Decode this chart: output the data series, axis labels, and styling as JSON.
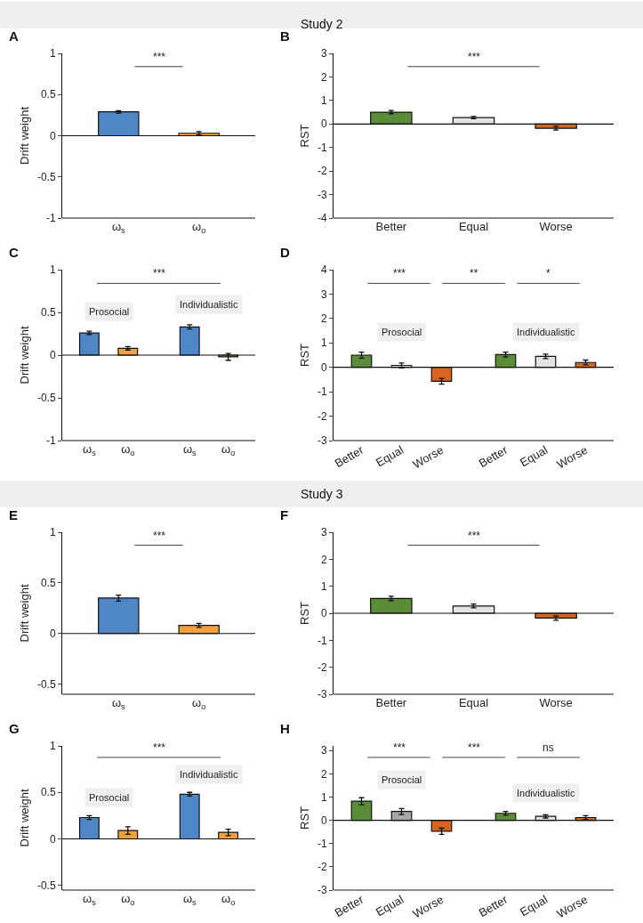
{
  "chart_data": [
    {
      "type": "other",
      "title": "Study 2"
    },
    {
      "type": "bar",
      "title": "A",
      "ylabel": "Drift weight",
      "categories": [
        "ω$_{s}$",
        "ω$_{o}$"
      ],
      "series": [
        {
          "values": [
            0.29,
            0.03
          ],
          "colors": [
            "#4f86c6",
            "#f5a03c"
          ],
          "errors": [
            0.015,
            0.02
          ]
        }
      ],
      "ylim": [
        -1,
        1
      ],
      "yticks": [
        -1,
        -0.5,
        0,
        0.5,
        1
      ],
      "annotations": [
        "***"
      ],
      "ref_lines": [
        {
          "axis": "y",
          "value": 0
        }
      ]
    },
    {
      "type": "bar",
      "title": "B",
      "ylabel": "RST",
      "categories": [
        "Better",
        "Equal",
        "Worse"
      ],
      "series": [
        {
          "values": [
            0.5,
            0.27,
            -0.18
          ],
          "colors": [
            "#5b8c3a",
            "#e3e3e3",
            "#d5651f"
          ],
          "errors": [
            0.07,
            0.05,
            0.08
          ]
        }
      ],
      "ylim": [
        -4,
        3
      ],
      "yticks": [
        -4,
        -3,
        -2,
        -1,
        0,
        1,
        2,
        3
      ],
      "annotations": [
        "***"
      ],
      "ref_lines": [
        {
          "axis": "y",
          "value": 0
        }
      ]
    },
    {
      "type": "bar",
      "title": "C",
      "ylabel": "Drift weight",
      "categories": [
        "ω$_{s}$",
        "ω$_{o}$",
        "ω$_{s}$",
        "ω$_{o}$"
      ],
      "series": [
        {
          "name": "Prosocial",
          "values": [
            0.26,
            0.08,
            null,
            null
          ],
          "colors": [
            "#4f86c6",
            "#f5a03c",
            null,
            null
          ],
          "errors": [
            0.02,
            0.02,
            null,
            null
          ]
        },
        {
          "name": "Individualistic",
          "values": [
            null,
            null,
            0.33,
            -0.02
          ],
          "colors": [
            null,
            null,
            "#4f86c6",
            "#f5a03c"
          ],
          "errors": [
            null,
            null,
            0.025,
            0.04
          ]
        }
      ],
      "ylim": [
        -1,
        1
      ],
      "yticks": [
        -1,
        -0.5,
        0,
        0.5,
        1
      ],
      "annotations": [
        "***"
      ],
      "ref_lines": [
        {
          "axis": "y",
          "value": 0
        }
      ]
    },
    {
      "type": "bar",
      "title": "D",
      "ylabel": "RST",
      "categories": [
        "Better",
        "Equal",
        "Worse",
        "Better",
        "Equal",
        "Worse"
      ],
      "series": [
        {
          "name": "Prosocial",
          "values": [
            0.5,
            0.08,
            -0.57,
            null,
            null,
            null
          ],
          "colors": [
            "#5b8c3a",
            "#e3e3e3",
            "#d5651f",
            null,
            null,
            null
          ],
          "errors": [
            0.12,
            0.1,
            0.12,
            null,
            null,
            null
          ]
        },
        {
          "name": "Individualistic",
          "values": [
            null,
            null,
            null,
            0.52,
            0.45,
            0.2
          ],
          "colors": [
            null,
            null,
            null,
            "#5b8c3a",
            "#e3e3e3",
            "#d5651f"
          ],
          "errors": [
            null,
            null,
            null,
            0.1,
            0.09,
            0.1
          ]
        }
      ],
      "ylim": [
        -3,
        4
      ],
      "yticks": [
        -3,
        -2,
        -1,
        0,
        1,
        2,
        3,
        4
      ],
      "annotations": [
        "***",
        "**",
        "*"
      ],
      "ref_lines": [
        {
          "axis": "y",
          "value": 0
        }
      ]
    },
    {
      "type": "other",
      "title": "Study 3"
    },
    {
      "type": "bar",
      "title": "E",
      "ylabel": "Drift weight",
      "categories": [
        "ω$_{s}$",
        "ω$_{o}$"
      ],
      "series": [
        {
          "values": [
            0.35,
            0.08
          ],
          "colors": [
            "#4f86c6",
            "#f5a03c"
          ],
          "errors": [
            0.03,
            0.02
          ]
        }
      ],
      "ylim": [
        -0.6,
        1
      ],
      "yticks": [
        -0.5,
        0,
        0.5,
        1
      ],
      "annotations": [
        "***"
      ],
      "ref_lines": [
        {
          "axis": "y",
          "value": 0
        }
      ]
    },
    {
      "type": "bar",
      "title": "F",
      "ylabel": "RST",
      "categories": [
        "Better",
        "Equal",
        "Worse"
      ],
      "series": [
        {
          "values": [
            0.55,
            0.27,
            -0.18
          ],
          "colors": [
            "#5b8c3a",
            "#e3e3e3",
            "#d5651f"
          ],
          "errors": [
            0.08,
            0.07,
            0.08
          ]
        }
      ],
      "ylim": [
        -3,
        3
      ],
      "yticks": [
        -3,
        -2,
        -1,
        0,
        1,
        2,
        3
      ],
      "annotations": [
        "***"
      ],
      "ref_lines": [
        {
          "axis": "y",
          "value": 0
        }
      ]
    },
    {
      "type": "bar",
      "title": "G",
      "ylabel": "Drift weight",
      "categories": [
        "ω$_{s}$",
        "ω$_{o}$",
        "ω$_{s}$",
        "ω$_{o}$"
      ],
      "series": [
        {
          "name": "Prosocial",
          "values": [
            0.23,
            0.09,
            null,
            null
          ],
          "colors": [
            "#4f86c6",
            "#f5a03c",
            null,
            null
          ],
          "errors": [
            0.02,
            0.04,
            null,
            null
          ]
        },
        {
          "name": "Individualistic",
          "values": [
            null,
            null,
            0.48,
            0.07
          ],
          "colors": [
            null,
            null,
            "#4f86c6",
            "#f5a03c"
          ],
          "errors": [
            null,
            null,
            0.02,
            0.035
          ]
        }
      ],
      "ylim": [
        -0.55,
        1
      ],
      "yticks": [
        -0.5,
        0,
        0.5,
        1
      ],
      "annotations": [
        "***"
      ],
      "ref_lines": [
        {
          "axis": "y",
          "value": 0
        }
      ]
    },
    {
      "type": "bar",
      "title": "H",
      "ylabel": "RST",
      "categories": [
        "Better",
        "Equal",
        "Worse",
        "Better",
        "Equal",
        "Worse"
      ],
      "series": [
        {
          "name": "Prosocial",
          "values": [
            0.82,
            0.38,
            -0.47,
            null,
            null,
            null
          ],
          "colors": [
            "#5b8c3a",
            "#a8a8a8",
            "#d5651f",
            null,
            null,
            null
          ],
          "errors": [
            0.15,
            0.13,
            0.13,
            null,
            null,
            null
          ]
        },
        {
          "name": "Individualistic",
          "values": [
            null,
            null,
            null,
            0.3,
            0.17,
            0.12
          ],
          "colors": [
            null,
            null,
            null,
            "#5b8c3a",
            "#e3e3e3",
            "#d5651f"
          ],
          "errors": [
            null,
            null,
            null,
            0.08,
            0.07,
            0.08
          ]
        }
      ],
      "ylim": [
        -3,
        3.2
      ],
      "yticks": [
        -3,
        -2,
        -1,
        0,
        1,
        2,
        3
      ],
      "annotations": [
        "***",
        "***",
        "ns"
      ],
      "ref_lines": [
        {
          "axis": "y",
          "value": 0
        }
      ]
    }
  ]
}
